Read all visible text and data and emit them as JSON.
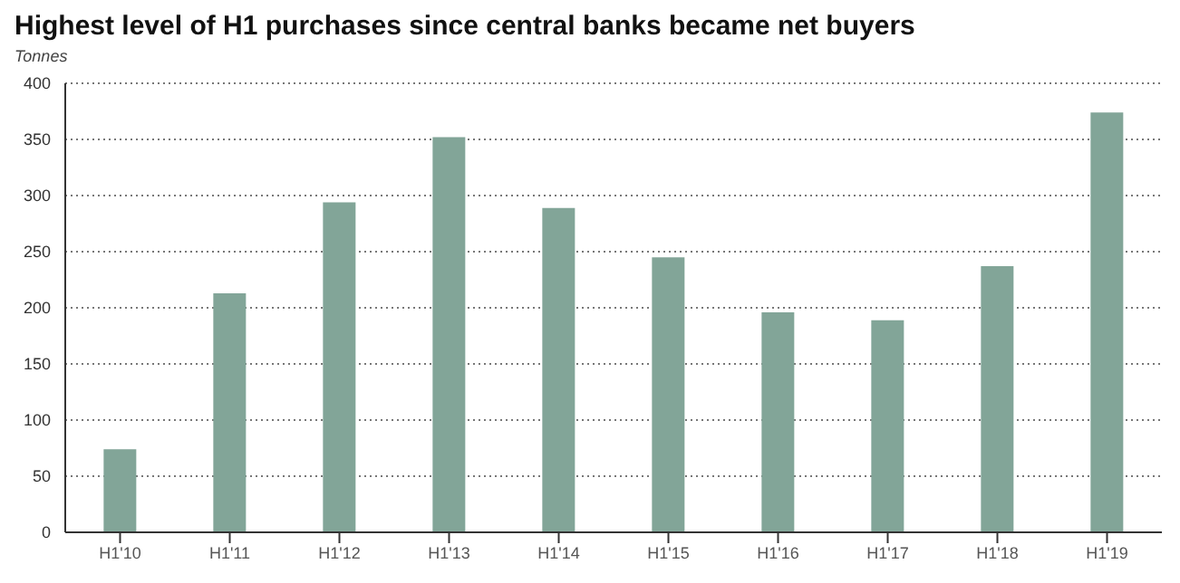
{
  "chart_data": {
    "type": "bar",
    "title": "Highest level of H1 purchases since central banks became net buyers",
    "ylabel": "Tonnes",
    "categories": [
      "H1'10",
      "H1'11",
      "H1'12",
      "H1'13",
      "H1'14",
      "H1'15",
      "H1'16",
      "H1'17",
      "H1'18",
      "H1'19"
    ],
    "values": [
      74,
      213,
      294,
      352,
      289,
      245,
      196,
      189,
      237,
      374
    ],
    "color": "#82a598",
    "ylim": [
      0,
      400
    ],
    "yticks": [
      0,
      50,
      100,
      150,
      200,
      250,
      300,
      350,
      400
    ],
    "grid": "y",
    "legend": false
  }
}
